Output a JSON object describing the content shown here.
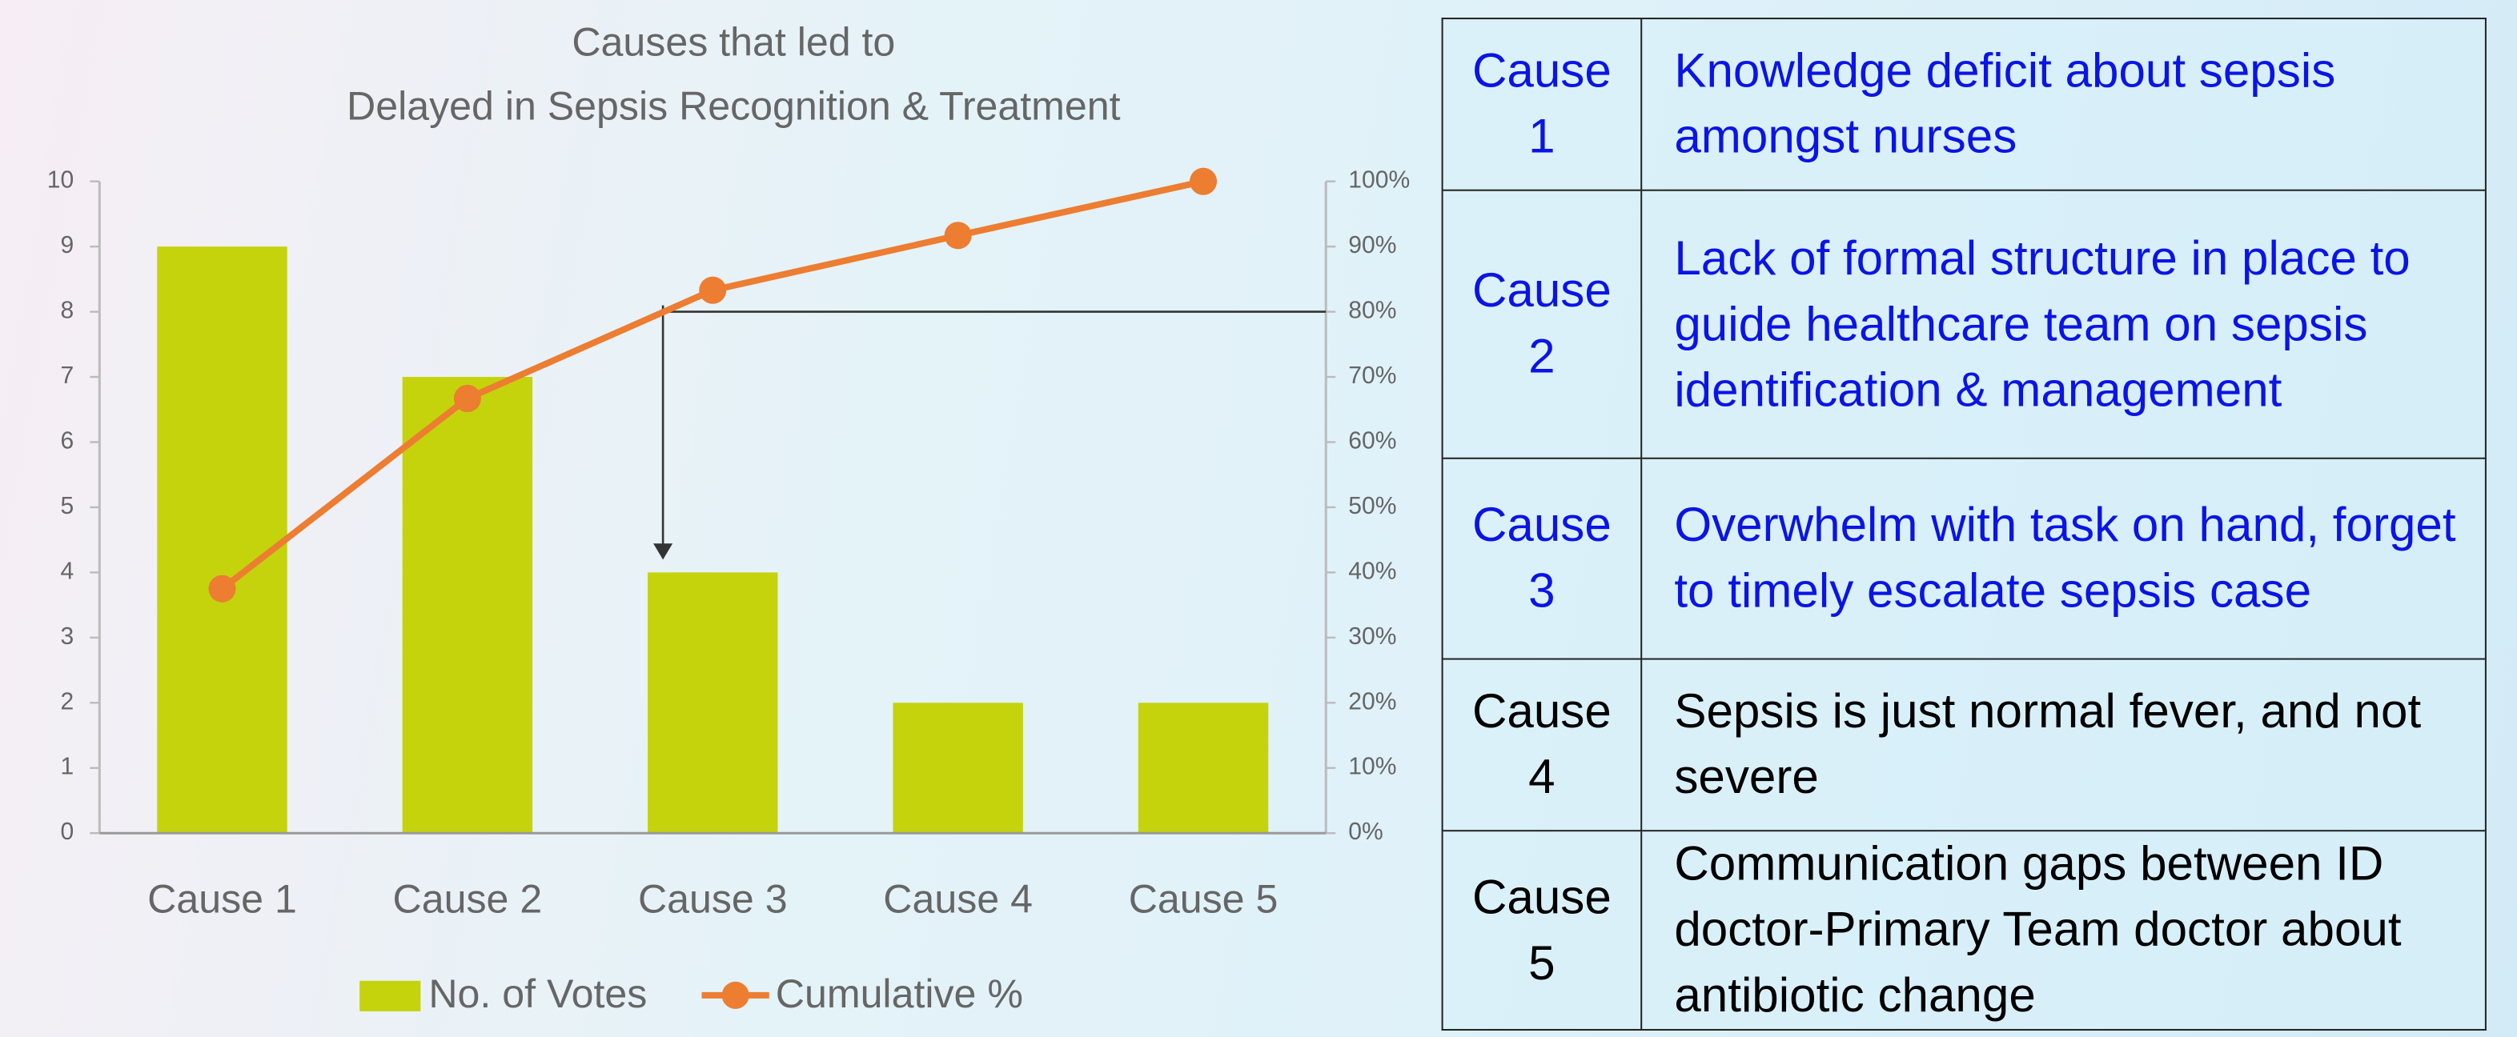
{
  "chart_data": {
    "type": "pareto",
    "title": [
      "Causes that led to",
      "Delayed in Sepsis Recognition & Treatment"
    ],
    "categories": [
      "Cause 1",
      "Cause 2",
      "Cause 3",
      "Cause 4",
      "Cause 5"
    ],
    "series": [
      {
        "name": "No. of Votes",
        "color": "#c4d30c",
        "kind": "bar",
        "values": [
          9,
          7,
          4,
          2,
          2
        ]
      },
      {
        "name": "Cumulative %",
        "color": "#ed7d31",
        "kind": "line",
        "axis": "y2",
        "values": [
          37.5,
          66.7,
          83.3,
          91.7,
          100
        ]
      }
    ],
    "ylim": [
      0,
      10
    ],
    "yticks": [
      0,
      1,
      2,
      3,
      4,
      5,
      6,
      7,
      8,
      9,
      10
    ],
    "y2lim": [
      0,
      100
    ],
    "y2ticks": [
      {
        "value": 0,
        "label": "0%"
      },
      {
        "value": 10,
        "label": "10%"
      },
      {
        "value": 20,
        "label": "20%"
      },
      {
        "value": 30,
        "label": "30%"
      },
      {
        "value": 40,
        "label": "40%"
      },
      {
        "value": 50,
        "label": "50%"
      },
      {
        "value": 60,
        "label": "60%"
      },
      {
        "value": 70,
        "label": "70%"
      },
      {
        "value": 80,
        "label": "80%"
      },
      {
        "value": 90,
        "label": "90%"
      },
      {
        "value": 100,
        "label": "100%"
      }
    ],
    "reference_y2": 80,
    "legend": "bottom"
  },
  "table": {
    "rows": [
      {
        "cause": "Cause 1",
        "text": "Knowledge deficit about sepsis amongst nurses",
        "color": "#0a14e6"
      },
      {
        "cause": "Cause 2",
        "text": "Lack of formal structure in place to guide healthcare team on sepsis identification & management",
        "color": "#0a14e6"
      },
      {
        "cause": "Cause 3",
        "text": "Overwhelm with task on hand, forget to timely escalate sepsis case",
        "color": "#0a14e6"
      },
      {
        "cause": "Cause 4",
        "text": "Sepsis is just normal fever, and not severe",
        "color": "#000000"
      },
      {
        "cause": "Cause 5",
        "text": "Communication gaps between ID doctor-Primary Team doctor about antibiotic change",
        "color": "#000000"
      }
    ]
  }
}
